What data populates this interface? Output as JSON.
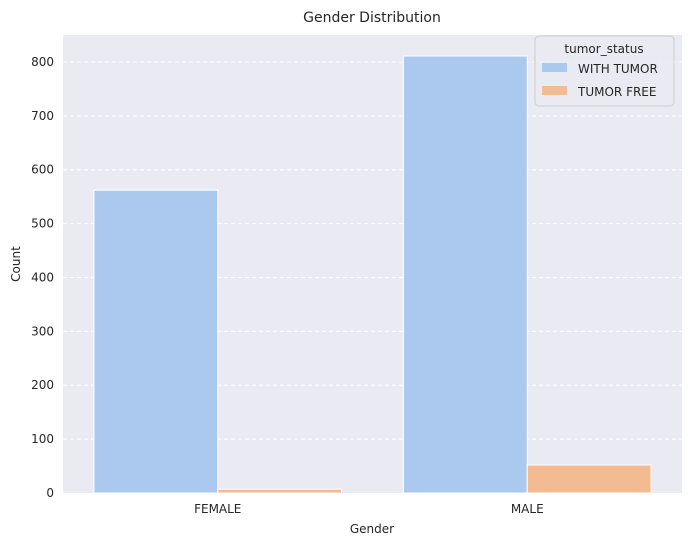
{
  "chart_data": {
    "type": "bar",
    "title": "Gender Distribution",
    "xlabel": "Gender",
    "ylabel": "Count",
    "categories": [
      "FEMALE",
      "MALE"
    ],
    "series": [
      {
        "name": "WITH TUMOR",
        "values": [
          562,
          811
        ],
        "color": "#abc9ee"
      },
      {
        "name": "TUMOR FREE",
        "values": [
          7,
          52
        ],
        "color": "#f2bb92"
      }
    ],
    "ylim": [
      0,
      850
    ],
    "yticks": [
      0,
      100,
      200,
      300,
      400,
      500,
      600,
      700,
      800
    ],
    "legend": {
      "title": "tumor_status",
      "position": "top-right"
    },
    "grid": true
  }
}
